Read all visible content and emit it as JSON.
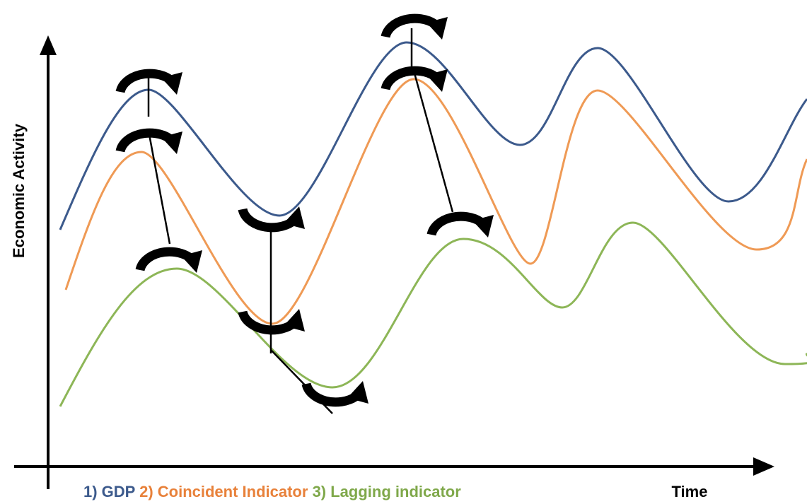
{
  "axes": {
    "y_label": "Economic Activity",
    "x_label": "Time"
  },
  "legend": [
    "1) GDP",
    "2) Coincident Indicator",
    "3) Lagging indicator"
  ]
}
